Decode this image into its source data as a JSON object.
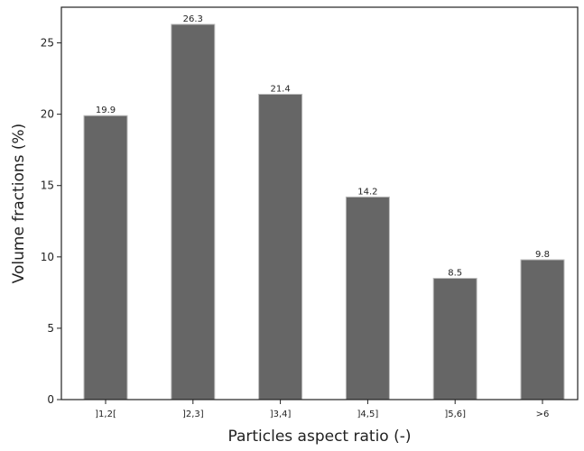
{
  "chart_data": {
    "type": "bar",
    "categories": [
      "]1,2[",
      "]2,3]",
      "]3,4]",
      "]4,5]",
      "]5,6]",
      ">6"
    ],
    "values": [
      19.9,
      26.3,
      21.4,
      14.2,
      8.5,
      9.8
    ],
    "value_labels": [
      "19.9",
      "26.3",
      "21.4",
      "14.2",
      "8.5",
      "9.8"
    ],
    "xlabel": "Particles aspect ratio (-)",
    "ylabel": "Volume fractions (%)",
    "ylim": [
      0,
      27.5
    ],
    "yticks": [
      0,
      5,
      10,
      15,
      20,
      25
    ],
    "grid": false,
    "bar_color": "#666666",
    "bar_edge_color": "#bbbbbb"
  }
}
